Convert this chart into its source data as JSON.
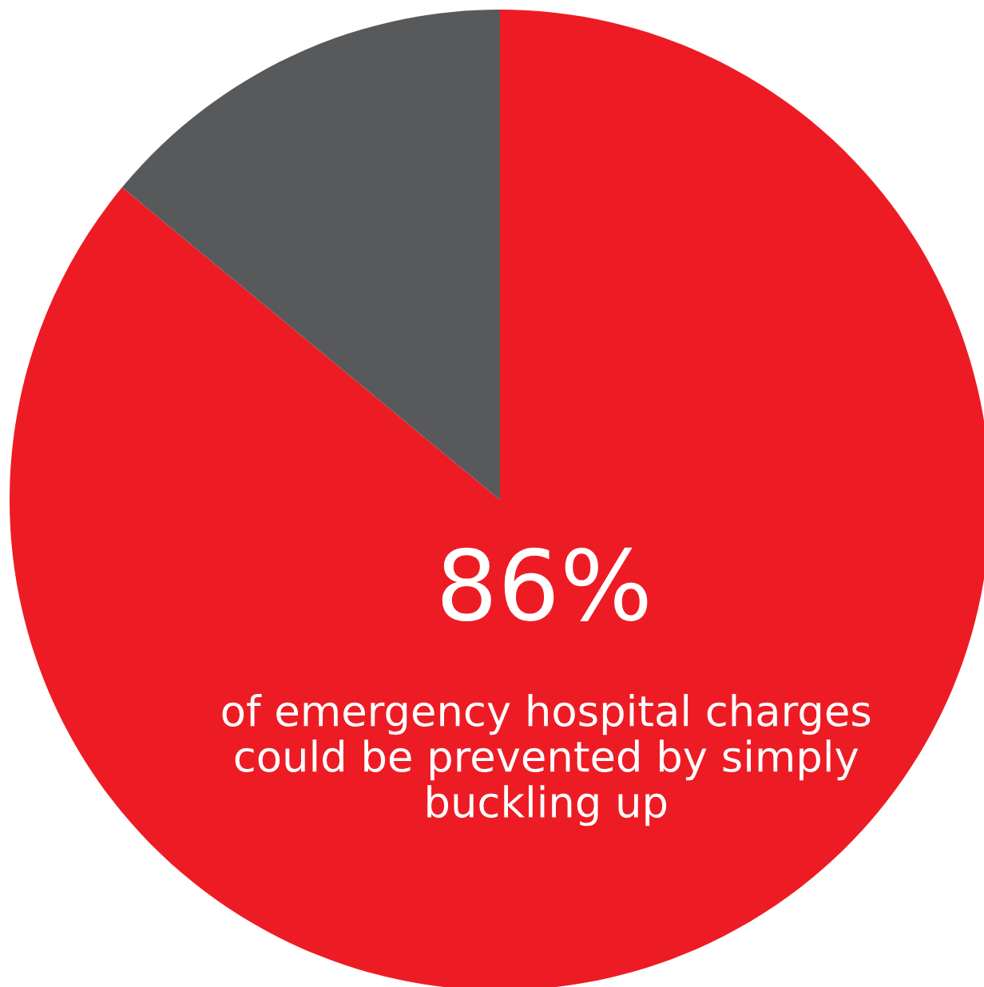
{
  "chart_data": {
    "type": "pie",
    "categories": [
      null,
      null
    ],
    "values": [
      86,
      14
    ],
    "colors": [
      "#ed1c24",
      "#58595b"
    ],
    "value_labels": [
      "86%",
      null
    ],
    "annotations": [
      "of emergency hospital charges could be prevented by simply buckling up"
    ]
  }
}
